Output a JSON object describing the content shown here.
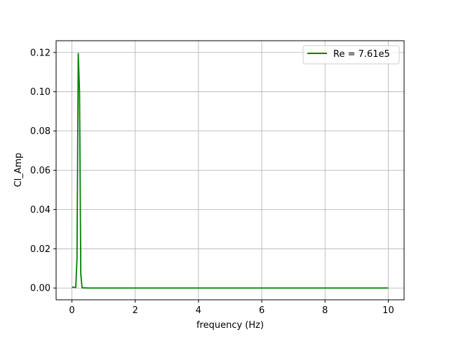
{
  "chart_data": {
    "type": "line",
    "xlabel": "frequency (Hz)",
    "ylabel": "Cl_Amp",
    "xlim": [
      -0.5,
      10.5
    ],
    "ylim": [
      -0.006,
      0.126
    ],
    "xticks": [
      0,
      2,
      4,
      6,
      8,
      10
    ],
    "xtick_labels": [
      "0",
      "2",
      "4",
      "6",
      "8",
      "10"
    ],
    "yticks": [
      0.0,
      0.02,
      0.04,
      0.06,
      0.08,
      0.1,
      0.12
    ],
    "ytick_labels": [
      "0.00",
      "0.02",
      "0.04",
      "0.06",
      "0.08",
      "0.10",
      "0.12"
    ],
    "grid": true,
    "legend_position": "top-right",
    "series": [
      {
        "name": "Re = 7.61e5",
        "color": "#008000",
        "x": [
          0.0,
          0.12,
          0.16,
          0.2,
          0.24,
          0.28,
          0.32,
          0.5,
          1.0,
          2.0,
          3.0,
          4.0,
          5.0,
          6.0,
          7.0,
          8.0,
          9.0,
          10.0
        ],
        "y": [
          0.0005,
          0.0002,
          0.015,
          0.1195,
          0.1,
          0.007,
          0.0001,
          0.0,
          0.0,
          0.0,
          0.0,
          0.0,
          0.0,
          0.0,
          0.0,
          0.0,
          0.0,
          0.0
        ]
      }
    ]
  }
}
